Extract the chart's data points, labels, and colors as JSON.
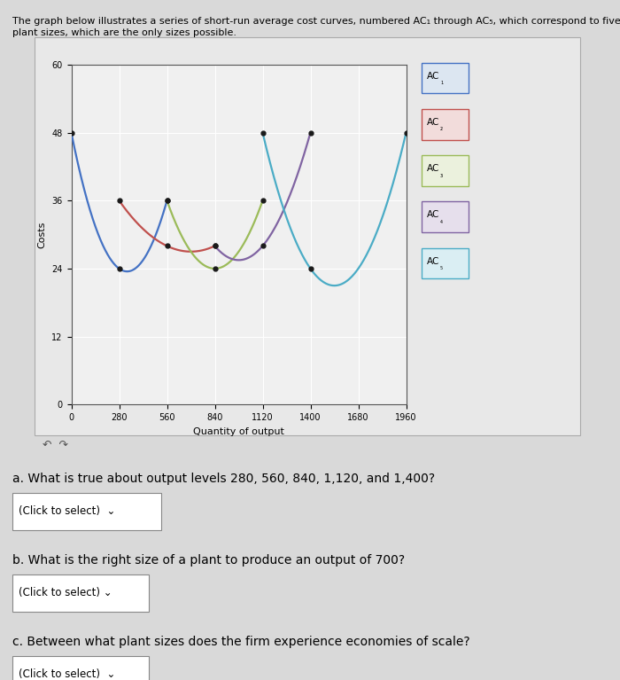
{
  "title_line1": "The graph below illustrates a series of short-run average cost curves, numbered AC₁ through AC₅, which correspond to five different",
  "title_line2": "plant sizes, which are the only sizes possible.",
  "xlabel": "Quantity of output",
  "ylabel": "Costs",
  "ylim": [
    0,
    60
  ],
  "xlim": [
    0,
    1960
  ],
  "yticks": [
    0,
    12,
    24,
    36,
    48,
    60
  ],
  "xticks": [
    0,
    280,
    560,
    840,
    1120,
    1400,
    1680,
    1960
  ],
  "curve_colors": [
    "#4472C4",
    "#C0504D",
    "#9BBB59",
    "#8064A2",
    "#4BACC6"
  ],
  "curve_labels": [
    "AC₁",
    "AC₂",
    "AC₃",
    "AC₄",
    "AC₅"
  ],
  "legend_box_facecolors": [
    "#DCE6F1",
    "#F2DCDB",
    "#EBF1DD",
    "#E6DFEC",
    "#DAEEF3"
  ],
  "legend_box_edgecolors": [
    "#4472C4",
    "#C0504D",
    "#9BBB59",
    "#8064A2",
    "#4BACC6"
  ],
  "background_color": "#D9D9D9",
  "panel_color": "#E8E8E8",
  "plot_bg_color": "#F0F0F0",
  "grid_color": "#FFFFFF",
  "dot_color": "#1A1A1A",
  "curve_params": [
    [
      0,
      48,
      280,
      24,
      560,
      36
    ],
    [
      280,
      36,
      560,
      28,
      840,
      28
    ],
    [
      560,
      36,
      840,
      24,
      1120,
      36
    ],
    [
      840,
      28,
      1120,
      28,
      1400,
      48
    ],
    [
      1120,
      48,
      1400,
      24,
      1960,
      48
    ]
  ],
  "question_a": "a. What is true about output levels 280, 560, 840, 1,120, and 1,400?",
  "question_b": "b. What is the right size of a plant to produce an output of 700?",
  "question_c": "c. Between what plant sizes does the firm experience economies of scale?",
  "click_text": "(Click to select)",
  "figsize": [
    7.0,
    7.67
  ],
  "dpi": 100
}
